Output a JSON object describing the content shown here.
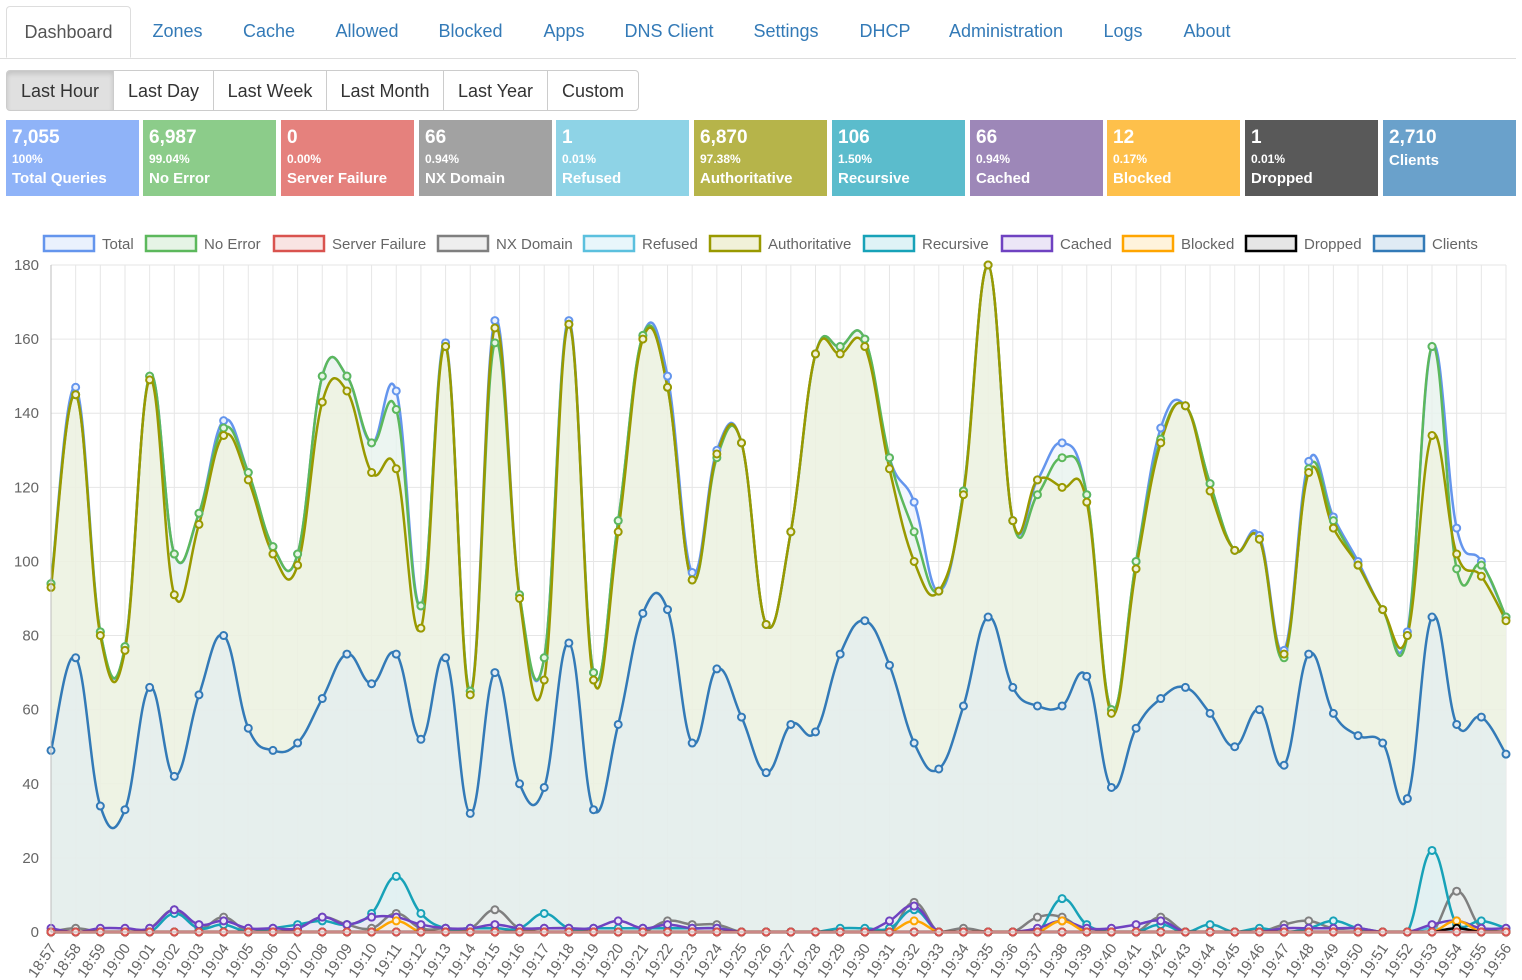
{
  "tabs": [
    {
      "label": "Dashboard",
      "active": true
    },
    {
      "label": "Zones"
    },
    {
      "label": "Cache"
    },
    {
      "label": "Allowed"
    },
    {
      "label": "Blocked"
    },
    {
      "label": "Apps"
    },
    {
      "label": "DNS Client"
    },
    {
      "label": "Settings"
    },
    {
      "label": "DHCP"
    },
    {
      "label": "Administration"
    },
    {
      "label": "Logs"
    },
    {
      "label": "About"
    }
  ],
  "periods": [
    {
      "label": "Last Hour",
      "active": true
    },
    {
      "label": "Last Day"
    },
    {
      "label": "Last Week"
    },
    {
      "label": "Last Month"
    },
    {
      "label": "Last Year"
    },
    {
      "label": "Custom"
    }
  ],
  "stats": [
    {
      "value": "7,055",
      "percent": "100%",
      "label": "Total Queries",
      "color": "#8fb3f8"
    },
    {
      "value": "6,987",
      "percent": "99.04%",
      "label": "No Error",
      "color": "#8ccc8a"
    },
    {
      "value": "0",
      "percent": "0.00%",
      "label": "Server Failure",
      "color": "#e5817d"
    },
    {
      "value": "66",
      "percent": "0.94%",
      "label": "NX Domain",
      "color": "#a2a2a2"
    },
    {
      "value": "1",
      "percent": "0.01%",
      "label": "Refused",
      "color": "#8ed3e6"
    },
    {
      "value": "6,870",
      "percent": "97.38%",
      "label": "Authoritative",
      "color": "#b6b44a"
    },
    {
      "value": "106",
      "percent": "1.50%",
      "label": "Recursive",
      "color": "#5bbccc"
    },
    {
      "value": "66",
      "percent": "0.94%",
      "label": "Cached",
      "color": "#9d87b8"
    },
    {
      "value": "12",
      "percent": "0.17%",
      "label": "Blocked",
      "color": "#fec04b"
    },
    {
      "value": "1",
      "percent": "0.01%",
      "label": "Dropped",
      "color": "#595959"
    },
    {
      "value": "2,710",
      "percent": "",
      "label": "Clients",
      "color": "#6aa1cb"
    }
  ],
  "chart_data": {
    "type": "line",
    "title": "",
    "xlabel": "",
    "ylabel": "",
    "ylim": [
      0,
      180
    ],
    "yticks": [
      0,
      20,
      40,
      60,
      80,
      100,
      120,
      140,
      160,
      180
    ],
    "legend_position": "top",
    "categories": [
      "18:57",
      "18:58",
      "18:59",
      "19:00",
      "19:01",
      "19:02",
      "19:03",
      "19:04",
      "19:05",
      "19:06",
      "19:07",
      "19:08",
      "19:09",
      "19:10",
      "19:11",
      "19:12",
      "19:13",
      "19:14",
      "19:15",
      "19:16",
      "19:17",
      "19:18",
      "19:19",
      "19:20",
      "19:21",
      "19:22",
      "19:23",
      "19:24",
      "19:25",
      "19:26",
      "19:27",
      "19:28",
      "19:29",
      "19:30",
      "19:31",
      "19:32",
      "19:33",
      "19:34",
      "19:35",
      "19:36",
      "19:37",
      "19:38",
      "19:39",
      "19:40",
      "19:41",
      "19:42",
      "19:43",
      "19:44",
      "19:45",
      "19:46",
      "19:47",
      "19:48",
      "19:49",
      "19:50",
      "19:51",
      "19:52",
      "19:53",
      "19:54",
      "19:55",
      "19:56"
    ],
    "series": [
      {
        "name": "Total",
        "color": "#6495ed",
        "fill": "#eaf1fd",
        "values": [
          94,
          147,
          81,
          77,
          150,
          102,
          113,
          138,
          124,
          104,
          102,
          150,
          150,
          132,
          146,
          88,
          159,
          65,
          165,
          91,
          74,
          165,
          70,
          111,
          161,
          150,
          97,
          130,
          132,
          83,
          108,
          156,
          158,
          160,
          128,
          116,
          92,
          119,
          180,
          111,
          122,
          132,
          118,
          60,
          100,
          136,
          142,
          121,
          103,
          107,
          76,
          127,
          112,
          100,
          87,
          81,
          158,
          109,
          100,
          85
        ]
      },
      {
        "name": "No Error",
        "color": "#5cb85c",
        "fill": "#e6f4e6",
        "values": [
          94,
          145,
          81,
          77,
          150,
          102,
          113,
          136,
          124,
          104,
          102,
          150,
          150,
          132,
          141,
          88,
          158,
          65,
          159,
          91,
          74,
          164,
          70,
          111,
          161,
          147,
          95,
          128,
          132,
          83,
          108,
          156,
          158,
          160,
          128,
          108,
          92,
          119,
          180,
          111,
          118,
          128,
          118,
          60,
          100,
          133,
          142,
          121,
          103,
          106,
          74,
          125,
          111,
          99,
          87,
          80,
          158,
          98,
          99,
          85
        ]
      },
      {
        "name": "Server Failure",
        "color": "#d9534f",
        "fill": "#f9e4e3",
        "values": [
          0,
          0,
          0,
          0,
          0,
          0,
          0,
          0,
          0,
          0,
          0,
          0,
          0,
          0,
          0,
          0,
          0,
          0,
          0,
          0,
          0,
          0,
          0,
          0,
          0,
          0,
          0,
          0,
          0,
          0,
          0,
          0,
          0,
          0,
          0,
          0,
          0,
          0,
          0,
          0,
          0,
          0,
          0,
          0,
          0,
          0,
          0,
          0,
          0,
          0,
          0,
          0,
          0,
          0,
          0,
          0,
          0,
          0,
          0,
          0
        ]
      },
      {
        "name": "NX Domain",
        "color": "#7f7f7f",
        "fill": "#eeeeee",
        "values": [
          0,
          1,
          0,
          0,
          1,
          6,
          1,
          4,
          0,
          0,
          1,
          4,
          2,
          1,
          5,
          1,
          1,
          1,
          6,
          1,
          1,
          1,
          0,
          0,
          0,
          3,
          2,
          2,
          0,
          0,
          0,
          0,
          0,
          0,
          0,
          8,
          0,
          1,
          0,
          0,
          4,
          4,
          0,
          0,
          0,
          4,
          0,
          0,
          0,
          0,
          2,
          3,
          1,
          1,
          0,
          0,
          0,
          11,
          1,
          0
        ]
      },
      {
        "name": "Refused",
        "color": "#5bc0de",
        "fill": "#e8f6fb",
        "values": [
          0,
          0,
          0,
          0,
          0,
          0,
          0,
          0,
          0,
          0,
          0,
          0,
          0,
          0,
          0,
          0,
          0,
          0,
          0,
          0,
          0,
          0,
          0,
          0,
          0,
          0,
          0,
          0,
          0,
          0,
          0,
          0,
          0,
          0,
          0,
          0,
          0,
          0,
          0,
          0,
          0,
          0,
          0,
          0,
          0,
          0,
          0,
          0,
          0,
          0,
          0,
          0,
          0,
          0,
          0,
          0,
          1,
          0,
          0,
          0
        ]
      },
      {
        "name": "Authoritative",
        "color": "#999900",
        "fill": "#f1f1d9",
        "values": [
          93,
          145,
          80,
          76,
          149,
          91,
          110,
          134,
          122,
          102,
          99,
          143,
          146,
          124,
          125,
          82,
          158,
          64,
          163,
          90,
          68,
          164,
          68,
          108,
          160,
          147,
          95,
          129,
          132,
          83,
          108,
          156,
          156,
          158,
          125,
          100,
          92,
          118,
          180,
          111,
          122,
          120,
          116,
          59,
          98,
          132,
          142,
          119,
          103,
          106,
          75,
          124,
          109,
          99,
          87,
          80,
          134,
          102,
          96,
          84
        ]
      },
      {
        "name": "Recursive",
        "color": "#17a2b8",
        "fill": "#dff3f6",
        "values": [
          0,
          0,
          0,
          0,
          0,
          5,
          1,
          2,
          0,
          1,
          2,
          3,
          2,
          5,
          15,
          5,
          1,
          1,
          1,
          1,
          5,
          1,
          1,
          1,
          1,
          1,
          1,
          1,
          0,
          0,
          0,
          0,
          1,
          1,
          1,
          6,
          0,
          0,
          0,
          0,
          0,
          9,
          2,
          0,
          0,
          2,
          0,
          2,
          0,
          1,
          0,
          1,
          3,
          1,
          0,
          0,
          22,
          2,
          3,
          1
        ]
      },
      {
        "name": "Cached",
        "color": "#6f42c1",
        "fill": "#ece6f7",
        "values": [
          1,
          0,
          1,
          1,
          1,
          6,
          2,
          3,
          1,
          1,
          1,
          4,
          2,
          4,
          4,
          2,
          1,
          1,
          2,
          1,
          1,
          1,
          1,
          3,
          1,
          2,
          1,
          1,
          0,
          0,
          0,
          0,
          0,
          0,
          3,
          7,
          0,
          0,
          0,
          0,
          1,
          3,
          1,
          1,
          2,
          3,
          0,
          0,
          0,
          0,
          1,
          1,
          1,
          1,
          0,
          0,
          2,
          3,
          1,
          1
        ]
      },
      {
        "name": "Blocked",
        "color": "#ffa500",
        "fill": "#fff3dc",
        "values": [
          0,
          0,
          0,
          0,
          0,
          0,
          0,
          0,
          0,
          0,
          0,
          0,
          0,
          0,
          3,
          0,
          0,
          0,
          0,
          0,
          0,
          0,
          0,
          0,
          0,
          0,
          0,
          0,
          0,
          0,
          0,
          0,
          0,
          0,
          0,
          3,
          0,
          0,
          0,
          0,
          0,
          3,
          0,
          0,
          0,
          0,
          0,
          0,
          0,
          0,
          0,
          0,
          0,
          0,
          0,
          0,
          0,
          3,
          0,
          0
        ]
      },
      {
        "name": "Dropped",
        "color": "#000000",
        "fill": "#e6e6e6",
        "values": [
          0,
          0,
          0,
          0,
          0,
          0,
          0,
          0,
          0,
          0,
          0,
          0,
          0,
          0,
          0,
          0,
          0,
          0,
          0,
          0,
          0,
          0,
          0,
          0,
          0,
          0,
          0,
          0,
          0,
          0,
          0,
          0,
          0,
          0,
          0,
          0,
          0,
          0,
          0,
          0,
          0,
          0,
          0,
          0,
          0,
          0,
          0,
          0,
          0,
          0,
          0,
          0,
          0,
          0,
          0,
          0,
          0,
          1,
          0,
          0
        ]
      },
      {
        "name": "Clients",
        "color": "#337ab7",
        "fill": "#e0ebf4",
        "values": [
          49,
          74,
          34,
          33,
          66,
          42,
          64,
          80,
          55,
          49,
          51,
          63,
          75,
          67,
          75,
          52,
          74,
          32,
          70,
          40,
          39,
          78,
          33,
          56,
          86,
          87,
          51,
          71,
          58,
          43,
          56,
          54,
          75,
          84,
          72,
          51,
          44,
          61,
          85,
          66,
          61,
          61,
          69,
          39,
          55,
          63,
          66,
          59,
          50,
          60,
          45,
          75,
          59,
          53,
          51,
          36,
          85,
          56,
          58,
          48
        ]
      }
    ]
  }
}
